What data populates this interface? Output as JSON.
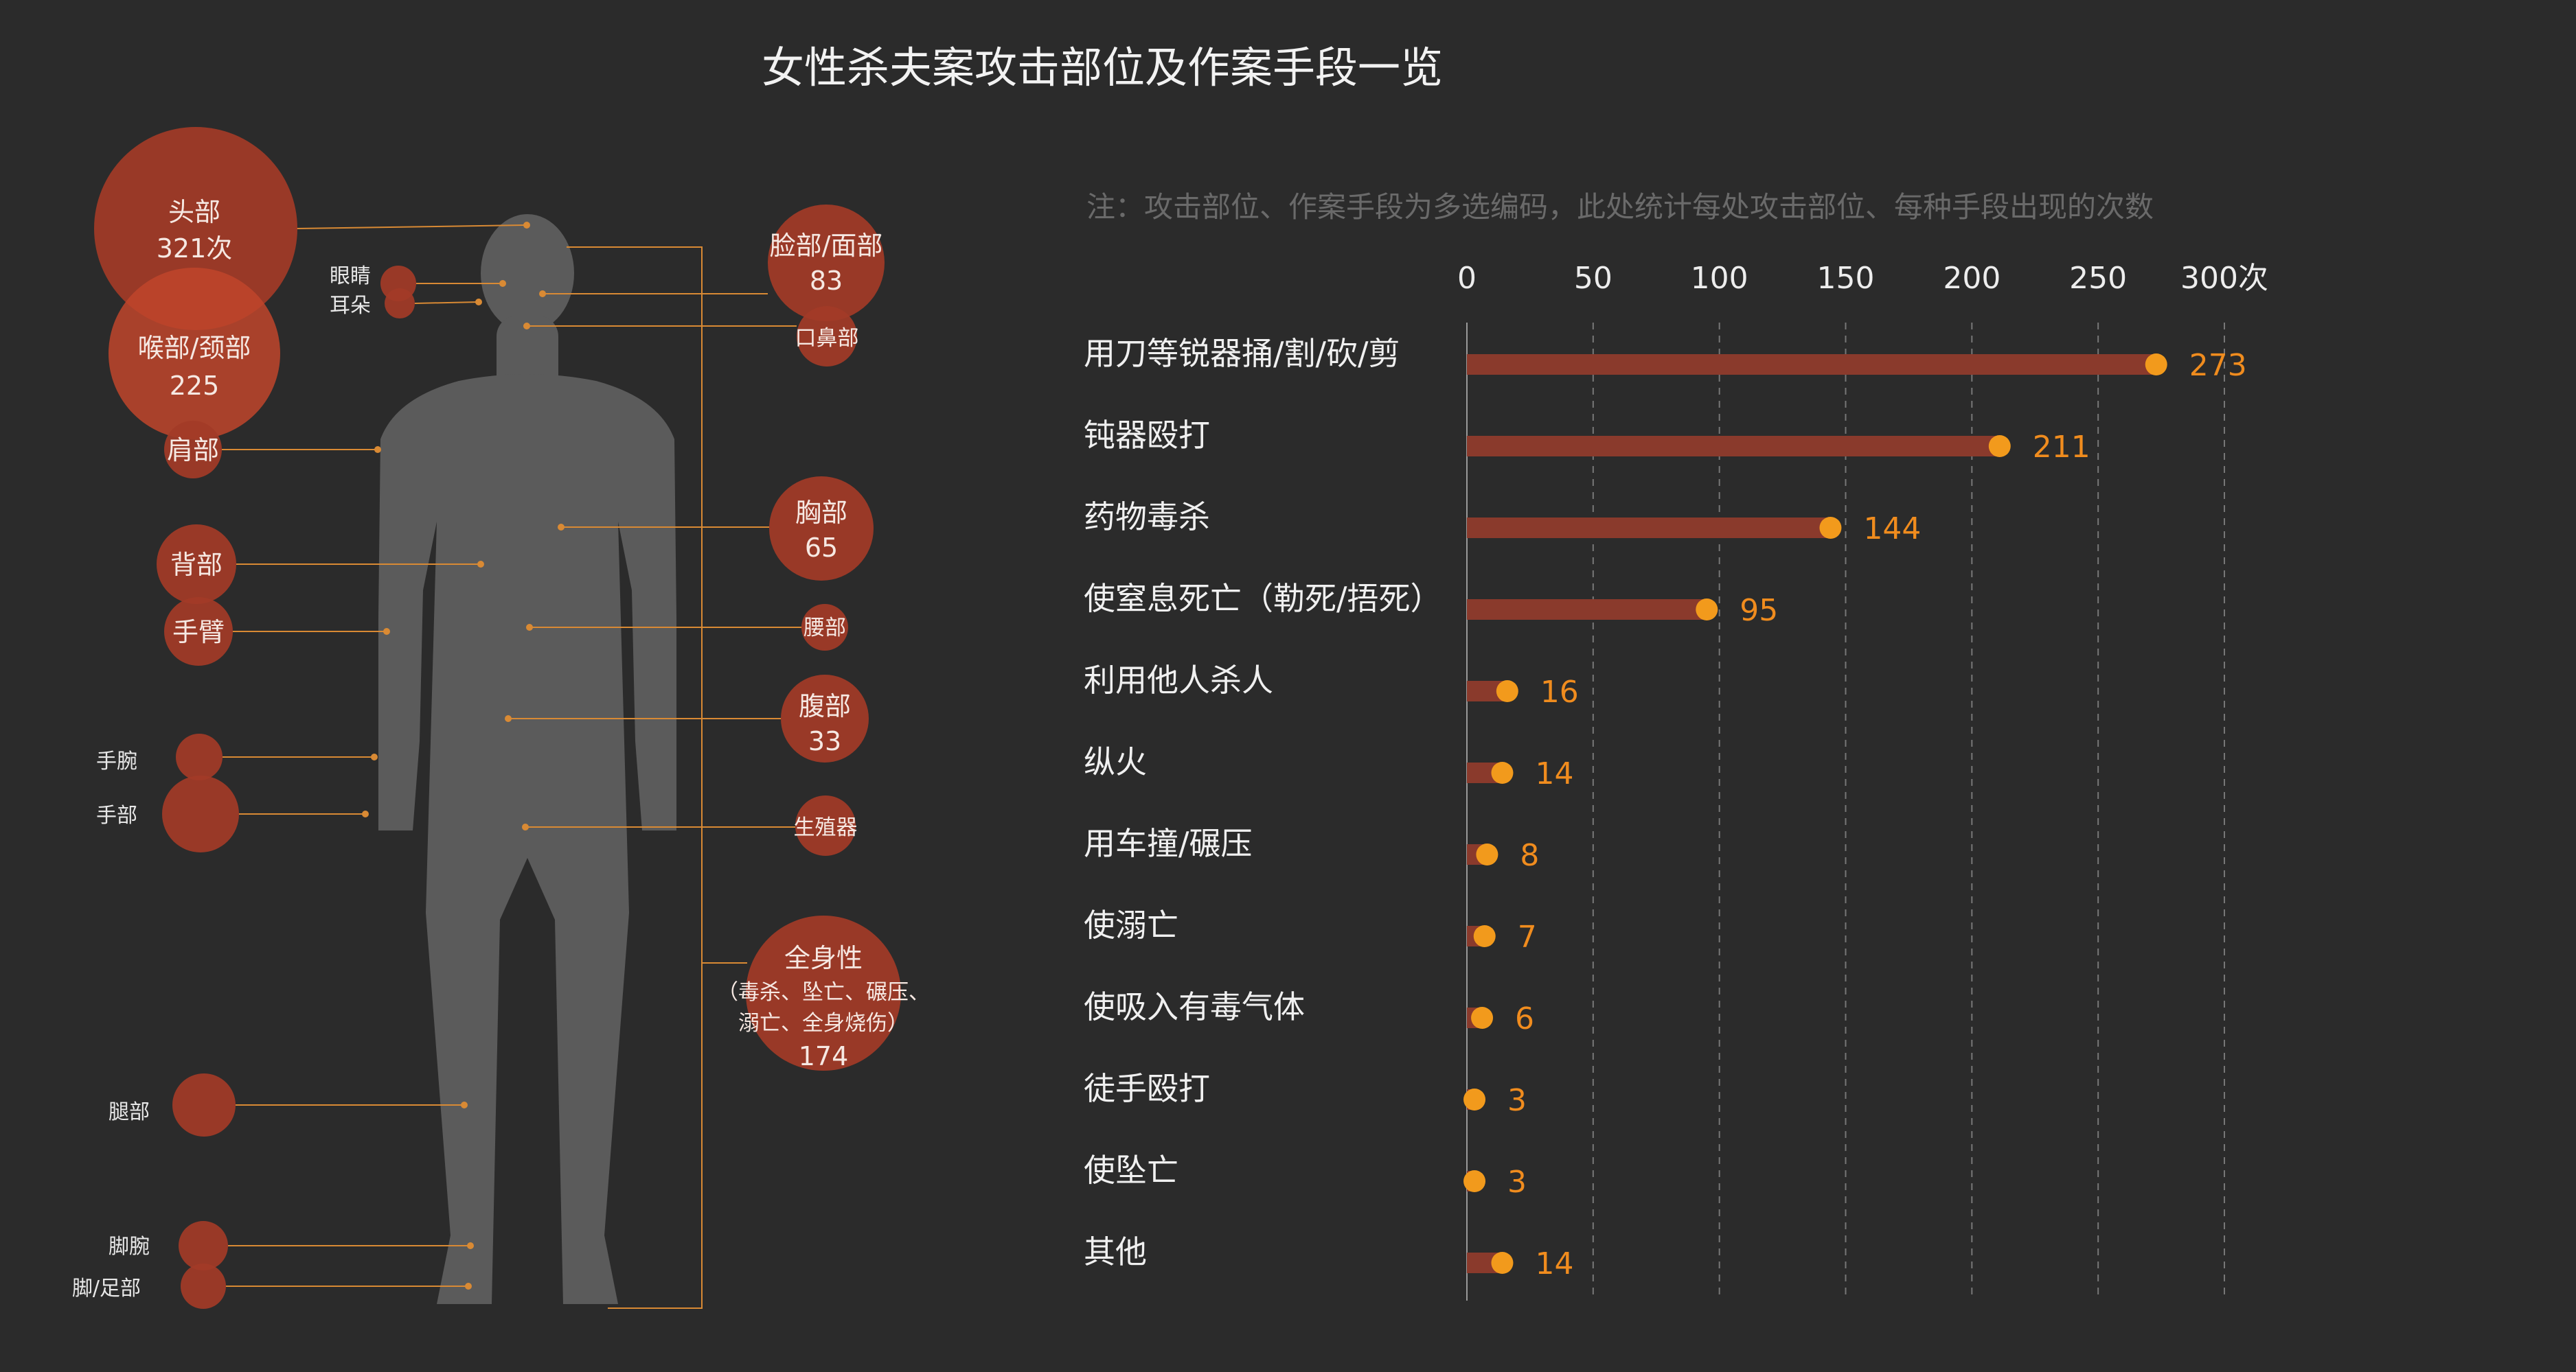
{
  "colors": {
    "background": "#2b2b2b",
    "bar": "#8a3a2c",
    "dot": "#f29a1c",
    "bubble": "#a33b27",
    "bubble_strong": "#c0452b",
    "body": "#5b5b5b",
    "leader": "#d98a34",
    "grid": "#777777"
  },
  "title": "女性杀夫案攻击部位及作案手段一览",
  "note": "注：攻击部位、作案手段为多选编码，此处统计每处攻击部位、每种手段出现的次数",
  "chart_data": [
    {
      "type": "bar",
      "orientation": "horizontal",
      "categories": [
        "用刀等锐器捅/割/砍/剪",
        "钝器殴打",
        "药物毒杀",
        "使窒息死亡（勒死/捂死）",
        "利用他人杀人",
        "纵火",
        "用车撞/碾压",
        "使溺亡",
        "使吸入有毒气体",
        "徒手殴打",
        "使坠亡",
        "其他"
      ],
      "values": [
        273,
        211,
        144,
        95,
        16,
        14,
        8,
        7,
        6,
        3,
        3,
        14
      ],
      "xlim": [
        0,
        300
      ],
      "xticks": [
        "0",
        "50",
        "100",
        "150",
        "200",
        "250",
        "300次"
      ],
      "grid": true
    },
    {
      "type": "bubble",
      "categories": [
        "头部",
        "喉部/颈部",
        "脸部/面部",
        "胸部",
        "全身性",
        "腹部",
        "眼睛",
        "耳朵",
        "口鼻部",
        "肩部",
        "背部",
        "手臂",
        "腰部",
        "手腕",
        "手部",
        "生殖器",
        "腿部",
        "脚腕",
        "脚/足部"
      ],
      "values": [
        321,
        225,
        83,
        65,
        174,
        33,
        null,
        null,
        null,
        null,
        null,
        null,
        null,
        null,
        null,
        null,
        null,
        null,
        null
      ],
      "printed_values": {
        "head": "321次",
        "throat": "225",
        "face": "83",
        "chest": "65",
        "abdomen": "33",
        "whole": "174"
      },
      "whole_note": [
        "（毒杀、坠亡、碾压、",
        "溺亡、全身烧伤）"
      ]
    }
  ]
}
